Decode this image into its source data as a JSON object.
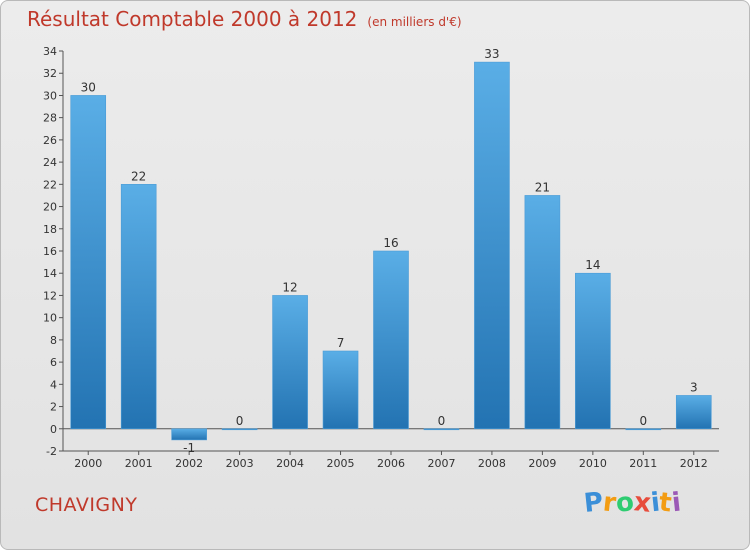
{
  "title": "Résultat Comptable 2000 à 2012",
  "unit": "(en milliers d'€)",
  "commune": "CHAVIGNY",
  "logo": {
    "letters": [
      "P",
      "r",
      "o",
      "x",
      "i",
      "t",
      "i"
    ],
    "colors": [
      "#3b8fd8",
      "#f39c12",
      "#2ecc71",
      "#e74c3c",
      "#3b8fd8",
      "#f39c12",
      "#9b59b6"
    ]
  },
  "colors": {
    "bar_top": "#5aaee6",
    "bar_bottom": "#2373b2",
    "title": "#c0392b"
  },
  "chart_data": {
    "type": "bar",
    "title": "Résultat Comptable 2000 à 2012",
    "subtitle": "(en milliers d'€)",
    "xlabel": "",
    "ylabel": "",
    "categories": [
      "2000",
      "2001",
      "2002",
      "2003",
      "2004",
      "2005",
      "2006",
      "2007",
      "2008",
      "2009",
      "2010",
      "2011",
      "2012"
    ],
    "values": [
      30,
      22,
      -1,
      0,
      12,
      7,
      16,
      0,
      33,
      21,
      14,
      0,
      3
    ],
    "labels": [
      "30",
      "22",
      "-1",
      "0",
      "12",
      "7",
      "16",
      "0",
      "33",
      "21",
      "14",
      "0",
      "3"
    ],
    "ylim": [
      -2,
      34
    ],
    "yticks": [
      -2,
      0,
      2,
      4,
      6,
      8,
      10,
      12,
      14,
      16,
      18,
      20,
      22,
      24,
      26,
      28,
      30,
      32,
      34
    ],
    "grid": false,
    "legend": "none"
  }
}
